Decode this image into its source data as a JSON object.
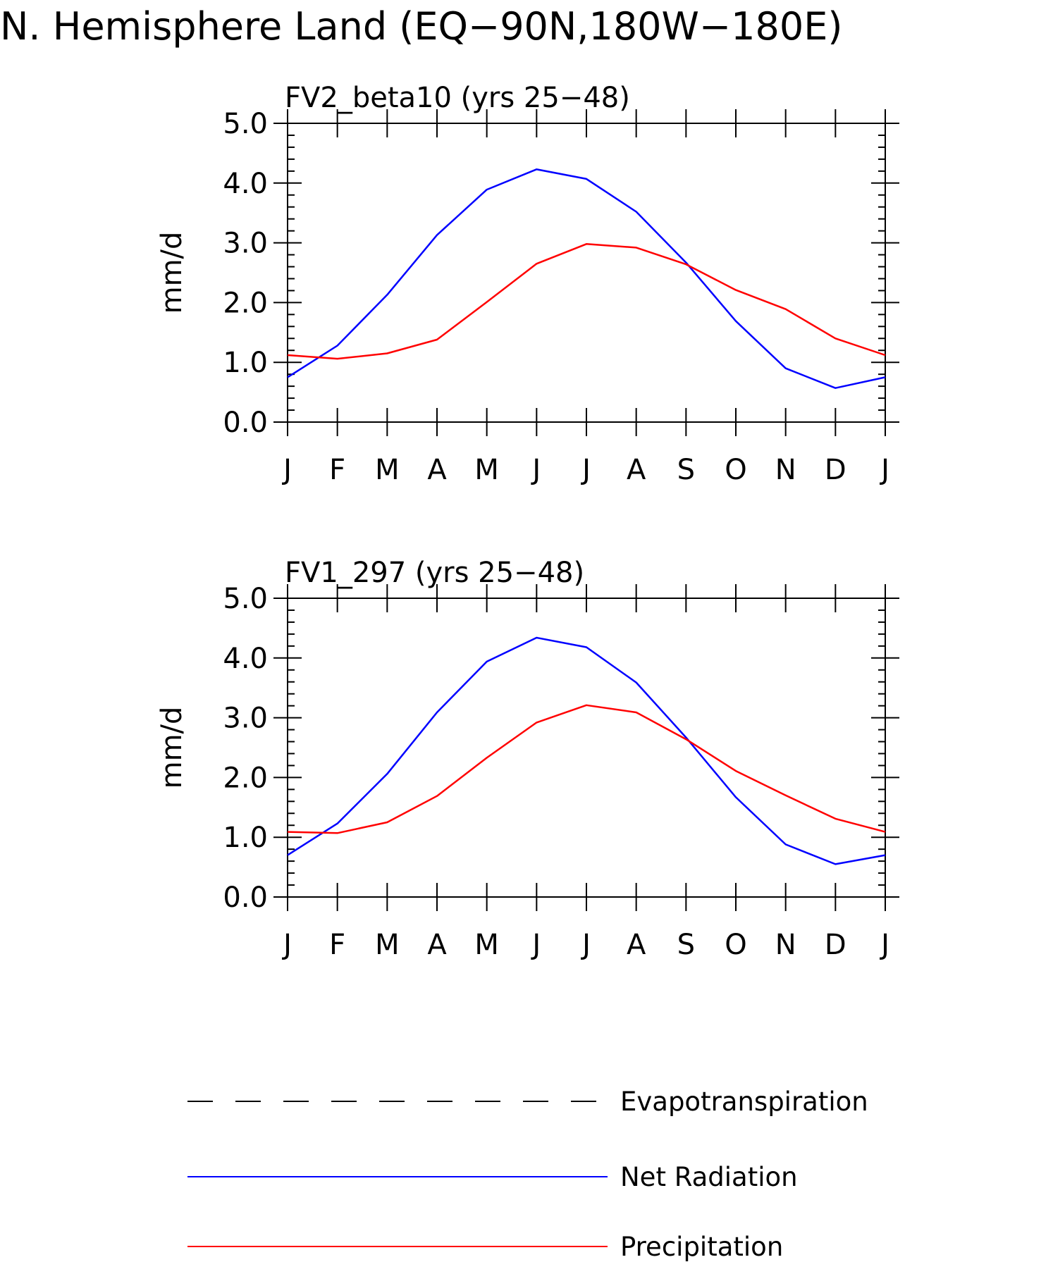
{
  "figure_title": "N. Hemisphere Land (EQ−90N,180W−180E)",
  "legend": {
    "position": "bottom",
    "entries": [
      {
        "label": "Evapotranspiration",
        "color": "#000000",
        "style": "dashed"
      },
      {
        "label": "Net Radiation",
        "color": "#0000ff",
        "style": "solid"
      },
      {
        "label": "Precipitation",
        "color": "#ff0000",
        "style": "solid"
      }
    ]
  },
  "chart_data": [
    {
      "type": "line",
      "title": "FV2_beta10 (yrs 25−48)",
      "xlabel": "",
      "ylabel": "mm/d",
      "ylim": [
        0,
        5
      ],
      "yticks": [
        "0.0",
        "1.0",
        "2.0",
        "3.0",
        "4.0",
        "5.0"
      ],
      "categories": [
        "J",
        "F",
        "M",
        "A",
        "M",
        "J",
        "J",
        "A",
        "S",
        "O",
        "N",
        "D",
        "J"
      ],
      "series": [
        {
          "name": "Net Radiation",
          "color": "#0000ff",
          "values": [
            0.75,
            1.28,
            2.13,
            3.13,
            3.89,
            4.23,
            4.07,
            3.52,
            2.67,
            1.69,
            0.9,
            0.57,
            0.75
          ]
        },
        {
          "name": "Precipitation",
          "color": "#ff0000",
          "values": [
            1.12,
            1.06,
            1.15,
            1.38,
            2.01,
            2.65,
            2.98,
            2.92,
            2.64,
            2.21,
            1.89,
            1.4,
            1.12
          ]
        }
      ]
    },
    {
      "type": "line",
      "title": "FV1_297 (yrs 25−48)",
      "xlabel": "",
      "ylabel": "mm/d",
      "ylim": [
        0,
        5
      ],
      "yticks": [
        "0.0",
        "1.0",
        "2.0",
        "3.0",
        "4.0",
        "5.0"
      ],
      "categories": [
        "J",
        "F",
        "M",
        "A",
        "M",
        "J",
        "J",
        "A",
        "S",
        "O",
        "N",
        "D",
        "J"
      ],
      "series": [
        {
          "name": "Net Radiation",
          "color": "#0000ff",
          "values": [
            0.7,
            1.23,
            2.06,
            3.09,
            3.94,
            4.34,
            4.18,
            3.59,
            2.67,
            1.67,
            0.88,
            0.55,
            0.7
          ]
        },
        {
          "name": "Precipitation",
          "color": "#ff0000",
          "values": [
            1.09,
            1.07,
            1.25,
            1.69,
            2.33,
            2.92,
            3.21,
            3.09,
            2.64,
            2.11,
            1.7,
            1.31,
            1.09
          ]
        }
      ]
    }
  ]
}
